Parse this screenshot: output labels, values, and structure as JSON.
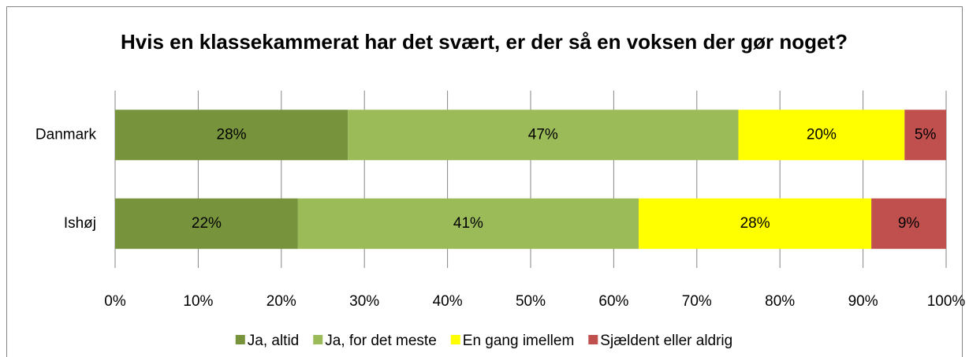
{
  "chart_data": {
    "type": "stacked-barh",
    "title": "Hvis en klassekammerat har det svært, er der så en voksen der gør noget?",
    "categories": [
      "Danmark",
      "Ishøj"
    ],
    "series": [
      {
        "name": "Ja, altid",
        "color": "#77933c",
        "values": [
          28,
          22
        ],
        "value_labels": [
          "28%",
          "22%"
        ]
      },
      {
        "name": "Ja, for det meste",
        "color": "#9bbb59",
        "values": [
          47,
          41
        ],
        "value_labels": [
          "47%",
          "41%"
        ]
      },
      {
        "name": "En gang imellem",
        "color": "#ffff00",
        "values": [
          20,
          28
        ],
        "value_labels": [
          "20%",
          "28%"
        ]
      },
      {
        "name": "Sjældent eller aldrig",
        "color": "#c0504d",
        "values": [
          5,
          9
        ],
        "value_labels": [
          "5%",
          "9%"
        ]
      }
    ],
    "xlim": [
      0,
      100
    ],
    "xticks": [
      {
        "value": 0,
        "label": "0%"
      },
      {
        "value": 10,
        "label": "10%"
      },
      {
        "value": 20,
        "label": "20%"
      },
      {
        "value": 30,
        "label": "30%"
      },
      {
        "value": 40,
        "label": "40%"
      },
      {
        "value": 50,
        "label": "50%"
      },
      {
        "value": 60,
        "label": "60%"
      },
      {
        "value": 70,
        "label": "70%"
      },
      {
        "value": 80,
        "label": "80%"
      },
      {
        "value": 90,
        "label": "90%"
      },
      {
        "value": 100,
        "label": "100%"
      }
    ],
    "grid": true,
    "legend": "bottom"
  }
}
